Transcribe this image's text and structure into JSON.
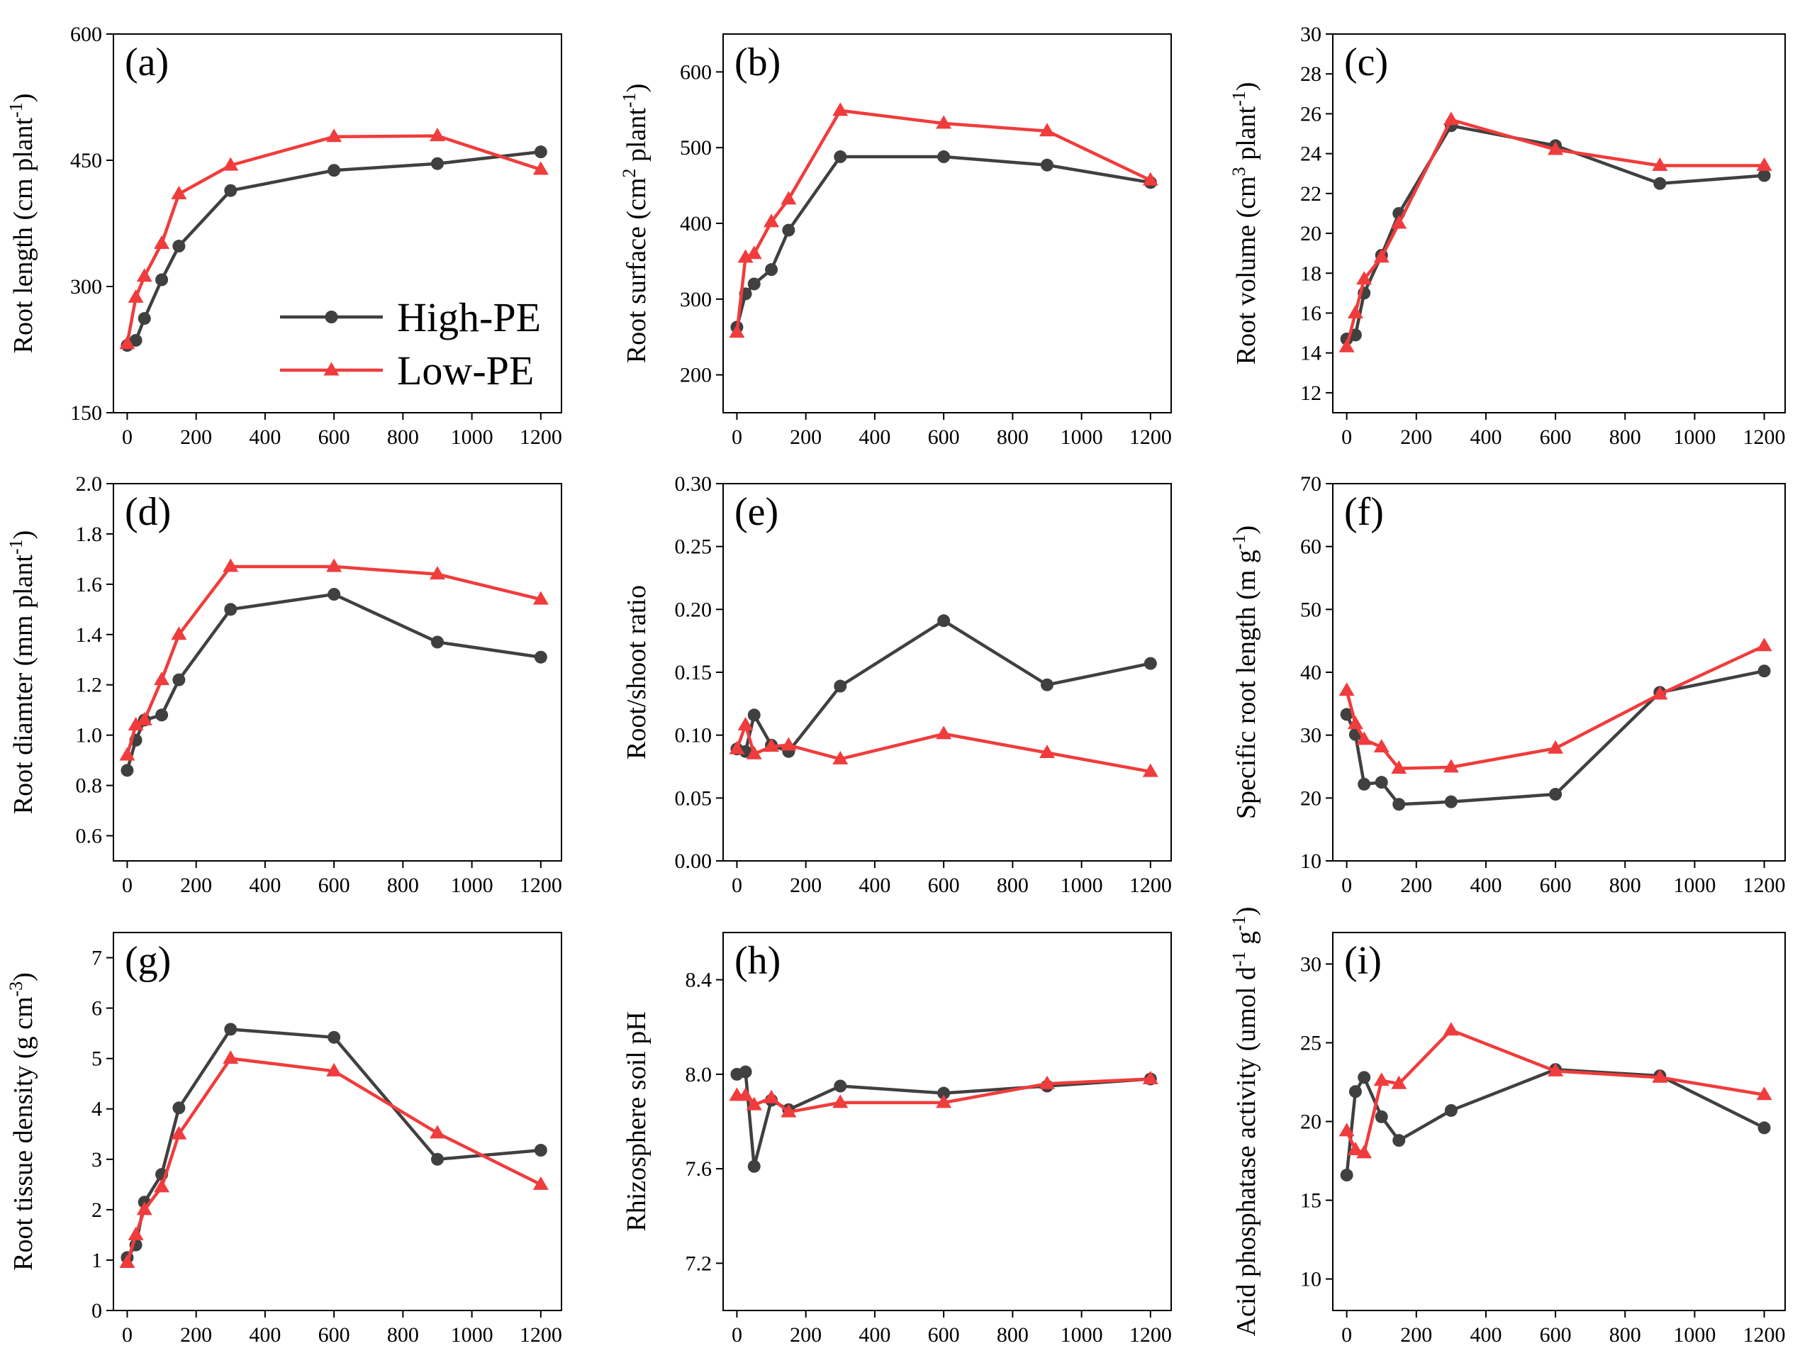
{
  "legend": {
    "items": [
      {
        "name": "High-PE",
        "color": "#404040",
        "marker": "circle"
      },
      {
        "name": "Low-PE",
        "color": "#f03c3c",
        "marker": "triangle"
      }
    ],
    "placement": "lower-right of panel (a)"
  },
  "colors": {
    "high": "#404040",
    "low": "#f03c3c",
    "axis": "#000000"
  },
  "chart_data": [
    {
      "type": "line",
      "label": "(a)",
      "ylabel_html": "Root length (cm plant<tspan baseline-shift='super' font-size='28'>-1</tspan>)",
      "ylabel": "Root length (cm plant-1)",
      "x": [
        0,
        25,
        50,
        100,
        150,
        300,
        600,
        900,
        1200
      ],
      "xlim": [
        -40,
        1260
      ],
      "xticks": [
        0,
        200,
        400,
        600,
        800,
        1000,
        1200
      ],
      "ylim": [
        150,
        600
      ],
      "yticks": [
        150,
        300,
        450,
        600
      ],
      "ytick_labels": [
        "150",
        "300",
        "450",
        "600"
      ],
      "series": [
        {
          "name": "High-PE",
          "values": [
            230,
            236,
            262,
            308,
            348,
            414,
            438,
            446,
            460
          ]
        },
        {
          "name": "Low-PE",
          "values": [
            232,
            287,
            312,
            351,
            410,
            444,
            478,
            479,
            439
          ]
        }
      ],
      "show_legend": true
    },
    {
      "type": "line",
      "label": "(b)",
      "ylabel": "Root surface (cm2 plant-1)",
      "x": [
        0,
        25,
        50,
        100,
        150,
        300,
        600,
        900,
        1200
      ],
      "xlim": [
        -40,
        1260
      ],
      "xticks": [
        0,
        200,
        400,
        600,
        800,
        1000,
        1200
      ],
      "ylim": [
        150,
        650
      ],
      "yticks": [
        200,
        300,
        400,
        500,
        600
      ],
      "ytick_labels": [
        "200",
        "300",
        "400",
        "500",
        "600"
      ],
      "series": [
        {
          "name": "High-PE",
          "values": [
            263,
            307,
            320,
            339,
            391,
            488,
            488,
            477,
            454
          ]
        },
        {
          "name": "Low-PE",
          "values": [
            256,
            355,
            360,
            402,
            432,
            549,
            532,
            522,
            457
          ]
        }
      ]
    },
    {
      "type": "line",
      "label": "(c)",
      "ylabel": "Root volume (cm3 plant-1)",
      "x": [
        0,
        25,
        50,
        100,
        150,
        300,
        600,
        900,
        1200
      ],
      "xlim": [
        -40,
        1260
      ],
      "xticks": [
        0,
        200,
        400,
        600,
        800,
        1000,
        1200
      ],
      "ylim": [
        11,
        30
      ],
      "yticks": [
        12,
        14,
        16,
        18,
        20,
        22,
        24,
        26,
        28,
        30
      ],
      "ytick_labels": [
        "12",
        "14",
        "16",
        "18",
        "20",
        "22",
        "24",
        "26",
        "28",
        "30"
      ],
      "series": [
        {
          "name": "High-PE",
          "values": [
            14.7,
            14.9,
            17.0,
            18.9,
            21.0,
            25.4,
            24.4,
            22.5,
            22.9
          ]
        },
        {
          "name": "Low-PE",
          "values": [
            14.3,
            16.0,
            17.7,
            18.8,
            20.5,
            25.7,
            24.2,
            23.4,
            23.4
          ]
        }
      ]
    },
    {
      "type": "line",
      "label": "(d)",
      "ylabel": "Root diamter (mm plant-1)",
      "x": [
        0,
        25,
        50,
        100,
        150,
        300,
        600,
        900,
        1200
      ],
      "xlim": [
        -40,
        1260
      ],
      "xticks": [
        0,
        200,
        400,
        600,
        800,
        1000,
        1200
      ],
      "ylim": [
        0.5,
        2.0
      ],
      "yticks": [
        0.6,
        0.8,
        1.0,
        1.2,
        1.4,
        1.6,
        1.8,
        2.0
      ],
      "ytick_labels": [
        "0.6",
        "0.8",
        "1.0",
        "1.2",
        "1.4",
        "1.6",
        "1.8",
        "2.0"
      ],
      "series": [
        {
          "name": "High-PE",
          "values": [
            0.86,
            0.98,
            1.06,
            1.08,
            1.22,
            1.5,
            1.56,
            1.37,
            1.31
          ]
        },
        {
          "name": "Low-PE",
          "values": [
            0.92,
            1.04,
            1.06,
            1.22,
            1.4,
            1.67,
            1.67,
            1.64,
            1.54
          ]
        }
      ]
    },
    {
      "type": "line",
      "label": "(e)",
      "ylabel": "Root/shoot ratio",
      "x": [
        0,
        25,
        50,
        100,
        150,
        300,
        600,
        900,
        1200
      ],
      "xlim": [
        -40,
        1260
      ],
      "xticks": [
        0,
        200,
        400,
        600,
        800,
        1000,
        1200
      ],
      "ylim": [
        0,
        0.3
      ],
      "yticks": [
        0,
        0.05,
        0.1,
        0.15,
        0.2,
        0.25,
        0.3
      ],
      "ytick_labels": [
        "0.00",
        "0.05",
        "0.10",
        "0.15",
        "0.20",
        "0.25",
        "0.30"
      ],
      "series": [
        {
          "name": "High-PE",
          "values": [
            0.089,
            0.087,
            0.116,
            0.092,
            0.087,
            0.139,
            0.191,
            0.14,
            0.157
          ]
        },
        {
          "name": "Low-PE",
          "values": [
            0.089,
            0.108,
            0.085,
            0.091,
            0.092,
            0.081,
            0.101,
            0.086,
            0.071
          ]
        }
      ]
    },
    {
      "type": "line",
      "label": "(f)",
      "ylabel": "Specific root length (m g-1)",
      "x": [
        0,
        25,
        50,
        100,
        150,
        300,
        600,
        900,
        1200
      ],
      "xlim": [
        -40,
        1260
      ],
      "xticks": [
        0,
        200,
        400,
        600,
        800,
        1000,
        1200
      ],
      "ylim": [
        10,
        70
      ],
      "yticks": [
        10,
        20,
        30,
        40,
        50,
        60,
        70
      ],
      "ytick_labels": [
        "10",
        "20",
        "30",
        "40",
        "50",
        "60",
        "70"
      ],
      "series": [
        {
          "name": "High-PE",
          "values": [
            33.3,
            30.1,
            22.2,
            22.5,
            19.0,
            19.4,
            20.6,
            36.8,
            40.2
          ]
        },
        {
          "name": "Low-PE",
          "values": [
            37.1,
            31.8,
            29.3,
            28.1,
            24.7,
            24.9,
            27.9,
            36.5,
            44.2
          ]
        }
      ]
    },
    {
      "type": "line",
      "label": "(g)",
      "ylabel": "Root tissue density (g cm-3)",
      "x": [
        0,
        25,
        50,
        100,
        150,
        300,
        600,
        900,
        1200
      ],
      "xlim": [
        -40,
        1260
      ],
      "xticks": [
        0,
        200,
        400,
        600,
        800,
        1000,
        1200
      ],
      "ylim": [
        0,
        7.5
      ],
      "yticks": [
        0,
        1,
        2,
        3,
        4,
        5,
        6,
        7
      ],
      "ytick_labels": [
        "0",
        "1",
        "2",
        "3",
        "4",
        "5",
        "6",
        "7"
      ],
      "series": [
        {
          "name": "High-PE",
          "values": [
            1.05,
            1.3,
            2.15,
            2.7,
            4.02,
            5.58,
            5.42,
            3.0,
            3.18
          ]
        },
        {
          "name": "Low-PE",
          "values": [
            0.95,
            1.5,
            2.0,
            2.45,
            3.5,
            5.0,
            4.75,
            3.52,
            2.5
          ]
        }
      ]
    },
    {
      "type": "line",
      "label": "(h)",
      "ylabel": "Rhizosphere soil pH",
      "x": [
        0,
        25,
        50,
        100,
        150,
        300,
        600,
        900,
        1200
      ],
      "xlim": [
        -40,
        1260
      ],
      "xticks": [
        0,
        200,
        400,
        600,
        800,
        1000,
        1200
      ],
      "ylim": [
        7.0,
        8.6
      ],
      "yticks": [
        7.2,
        7.6,
        8.0,
        8.4
      ],
      "ytick_labels": [
        "7.2",
        "7.6",
        "8.0",
        "8.4"
      ],
      "series": [
        {
          "name": "High-PE",
          "values": [
            8.0,
            8.01,
            7.61,
            7.89,
            7.85,
            7.95,
            7.92,
            7.95,
            7.98
          ]
        },
        {
          "name": "Low-PE",
          "values": [
            7.91,
            7.91,
            7.87,
            7.9,
            7.84,
            7.88,
            7.88,
            7.96,
            7.98
          ]
        }
      ]
    },
    {
      "type": "line",
      "label": "(i)",
      "ylabel": "Acid phosphatase activity (umol d-1 g-1)",
      "x": [
        0,
        25,
        50,
        100,
        150,
        300,
        600,
        900,
        1200
      ],
      "xlim": [
        -40,
        1260
      ],
      "xticks": [
        0,
        200,
        400,
        600,
        800,
        1000,
        1200
      ],
      "ylim": [
        8,
        32
      ],
      "yticks": [
        10,
        15,
        20,
        25,
        30
      ],
      "ytick_labels": [
        "10",
        "15",
        "20",
        "25",
        "30"
      ],
      "series": [
        {
          "name": "High-PE",
          "values": [
            16.6,
            21.9,
            22.8,
            20.3,
            18.8,
            20.7,
            23.3,
            22.9,
            19.6
          ]
        },
        {
          "name": "Low-PE",
          "values": [
            19.4,
            18.2,
            18.0,
            22.6,
            22.4,
            25.8,
            23.2,
            22.8,
            21.7
          ]
        }
      ]
    }
  ],
  "ylabels_display": [
    {
      "main": "Root length (cm plant",
      "sup": "-1",
      "tail": ")"
    },
    {
      "main": "Root surface (cm",
      "sup": "2",
      "mid": " plant",
      "sup2": "-1",
      "tail": ")"
    },
    {
      "main": "Root volume (cm",
      "sup": "3",
      "mid": " plant",
      "sup2": "-1",
      "tail": ")"
    },
    {
      "main": "Root diamter (mm plant",
      "sup": "-1",
      "tail": ")"
    },
    {
      "main": "Root/shoot ratio"
    },
    {
      "main": "Specific root length (m g",
      "sup": "-1",
      "tail": ")"
    },
    {
      "main": "Root tissue density (g cm",
      "sup": "-3",
      "tail": ")"
    },
    {
      "main": "Rhizosphere soil pH"
    },
    {
      "main": "Acid phosphatase activity (umol d",
      "sup": "-1",
      "mid": " g",
      "sup2": "-1",
      "tail": ")"
    }
  ]
}
